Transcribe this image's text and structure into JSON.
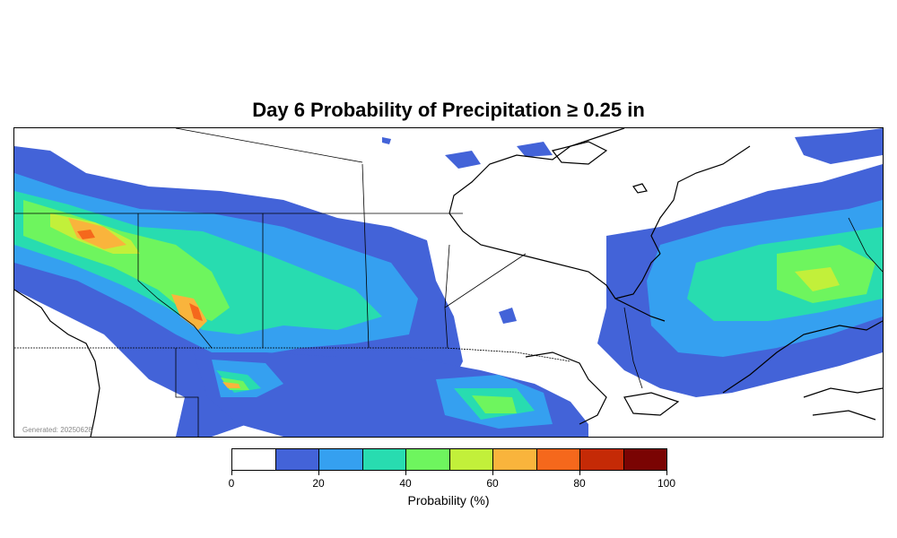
{
  "title": "Day 6 Probability of Precipitation ≥ 0.25 in",
  "generated": "Generated: 20250628",
  "legend": {
    "label": "Probability (%)",
    "bins": [
      {
        "from": 0,
        "to": 10,
        "color": "#ffffff"
      },
      {
        "from": 10,
        "to": 20,
        "color": "#4363d8"
      },
      {
        "from": 20,
        "to": 30,
        "color": "#35a0f0"
      },
      {
        "from": 30,
        "to": 40,
        "color": "#28dcb0"
      },
      {
        "from": 40,
        "to": 50,
        "color": "#6ef55e"
      },
      {
        "from": 50,
        "to": 60,
        "color": "#c2f03a"
      },
      {
        "from": 60,
        "to": 70,
        "color": "#f9b43c"
      },
      {
        "from": 70,
        "to": 80,
        "color": "#f5681c"
      },
      {
        "from": 80,
        "to": 90,
        "color": "#c52a06"
      },
      {
        "from": 90,
        "to": 100,
        "color": "#7a0403"
      }
    ],
    "ticks": [
      "0",
      "20",
      "40",
      "60",
      "80",
      "100"
    ]
  }
}
